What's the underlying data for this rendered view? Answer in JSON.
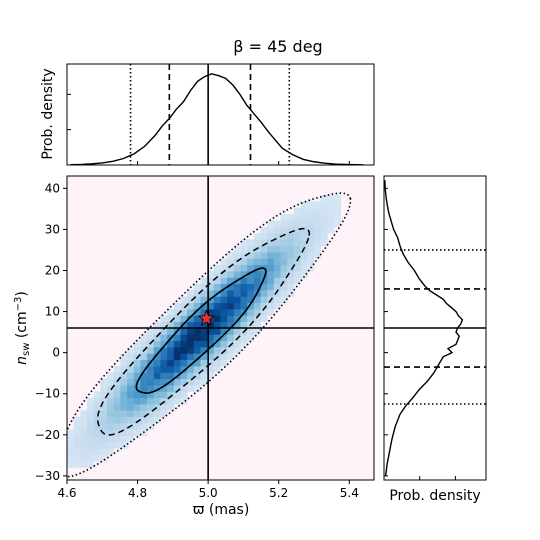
{
  "chart_data": {
    "type": "heatmap",
    "title": "β = 45 deg",
    "main": {
      "xlabel": "ϖ (mas)",
      "ylabel": "n_sw (cm⁻³)",
      "ylabel_main": "n",
      "ylabel_sub": "sw",
      "ylabel_unit": " (cm",
      "ylabel_sup": "−3",
      "ylabel_close": ")",
      "xlim": [
        4.6,
        5.47
      ],
      "ylim": [
        -31,
        43
      ],
      "xticks": [
        "4.6",
        "4.8",
        "5.0",
        "5.2",
        "5.4"
      ],
      "xtick_values": [
        4.6,
        4.8,
        5.0,
        5.2,
        5.4
      ],
      "yticks": [
        "−30",
        "−20",
        "−10",
        "0",
        "10",
        "20",
        "30",
        "40"
      ],
      "ytick_values": [
        -30,
        -20,
        -10,
        0,
        10,
        20,
        30,
        40
      ],
      "distribution": {
        "center_x": 4.98,
        "center_y": 5.0,
        "sigma_x": 0.12,
        "sigma_y": 10.0,
        "correlation": 0.92
      },
      "true_value": {
        "x": 5.0,
        "y": 6.0
      },
      "estimate_marker": {
        "x": 4.995,
        "y": 8.3,
        "symbol": "star",
        "color": "#e8302f"
      },
      "contour_levels": [
        "68%",
        "95%",
        "99.7%"
      ],
      "background_color": "#fdf3f8",
      "colormap": "Blues"
    },
    "top_marginal": {
      "ylabel": "Prob. density",
      "median": 5.0,
      "interval_68": [
        4.89,
        5.12
      ],
      "interval_95": [
        4.78,
        5.23
      ],
      "curve": [
        [
          4.61,
          0.003
        ],
        [
          4.64,
          0.006
        ],
        [
          4.67,
          0.012
        ],
        [
          4.7,
          0.022
        ],
        [
          4.73,
          0.04
        ],
        [
          4.76,
          0.07
        ],
        [
          4.79,
          0.12
        ],
        [
          4.82,
          0.2
        ],
        [
          4.85,
          0.32
        ],
        [
          4.87,
          0.42
        ],
        [
          4.89,
          0.5
        ],
        [
          4.91,
          0.6
        ],
        [
          4.93,
          0.68
        ],
        [
          4.95,
          0.8
        ],
        [
          4.97,
          0.9
        ],
        [
          4.99,
          0.95
        ],
        [
          5.01,
          0.98
        ],
        [
          5.03,
          0.96
        ],
        [
          5.05,
          0.93
        ],
        [
          5.07,
          0.86
        ],
        [
          5.09,
          0.76
        ],
        [
          5.11,
          0.64
        ],
        [
          5.13,
          0.55
        ],
        [
          5.15,
          0.46
        ],
        [
          5.17,
          0.36
        ],
        [
          5.19,
          0.27
        ],
        [
          5.21,
          0.18
        ],
        [
          5.24,
          0.11
        ],
        [
          5.27,
          0.06
        ],
        [
          5.3,
          0.035
        ],
        [
          5.33,
          0.02
        ],
        [
          5.36,
          0.01
        ],
        [
          5.4,
          0.005
        ],
        [
          5.44,
          0.002
        ]
      ]
    },
    "right_marginal": {
      "xlabel": "Prob. density",
      "median": 6.0,
      "interval_68": [
        -3.5,
        15.5
      ],
      "interval_95": [
        -12.5,
        25.0
      ],
      "curve": [
        [
          -30,
          0.02
        ],
        [
          -27,
          0.04
        ],
        [
          -24,
          0.07
        ],
        [
          -21,
          0.1
        ],
        [
          -18,
          0.14
        ],
        [
          -15,
          0.2
        ],
        [
          -13,
          0.27
        ],
        [
          -11,
          0.36
        ],
        [
          -9,
          0.44
        ],
        [
          -7,
          0.54
        ],
        [
          -5,
          0.62
        ],
        [
          -3,
          0.68
        ],
        [
          -1,
          0.74
        ],
        [
          0,
          0.85
        ],
        [
          1,
          0.8
        ],
        [
          2,
          0.9
        ],
        [
          3,
          0.92
        ],
        [
          4,
          0.94
        ],
        [
          5,
          0.9
        ],
        [
          6,
          0.92
        ],
        [
          7,
          0.96
        ],
        [
          8,
          0.98
        ],
        [
          9,
          0.93
        ],
        [
          10,
          0.9
        ],
        [
          11,
          0.84
        ],
        [
          12,
          0.78
        ],
        [
          13,
          0.74
        ],
        [
          14,
          0.66
        ],
        [
          15,
          0.58
        ],
        [
          16,
          0.52
        ],
        [
          18,
          0.44
        ],
        [
          20,
          0.38
        ],
        [
          22,
          0.3
        ],
        [
          24,
          0.24
        ],
        [
          26,
          0.2
        ],
        [
          28,
          0.17
        ],
        [
          30,
          0.12
        ],
        [
          32,
          0.09
        ],
        [
          34,
          0.06
        ],
        [
          36,
          0.04
        ],
        [
          38,
          0.025
        ],
        [
          40,
          0.015
        ],
        [
          42,
          0.01
        ]
      ]
    },
    "colors": {
      "ink": "#000000",
      "background": "#fdf3f8",
      "marker": "#e8302f"
    }
  }
}
